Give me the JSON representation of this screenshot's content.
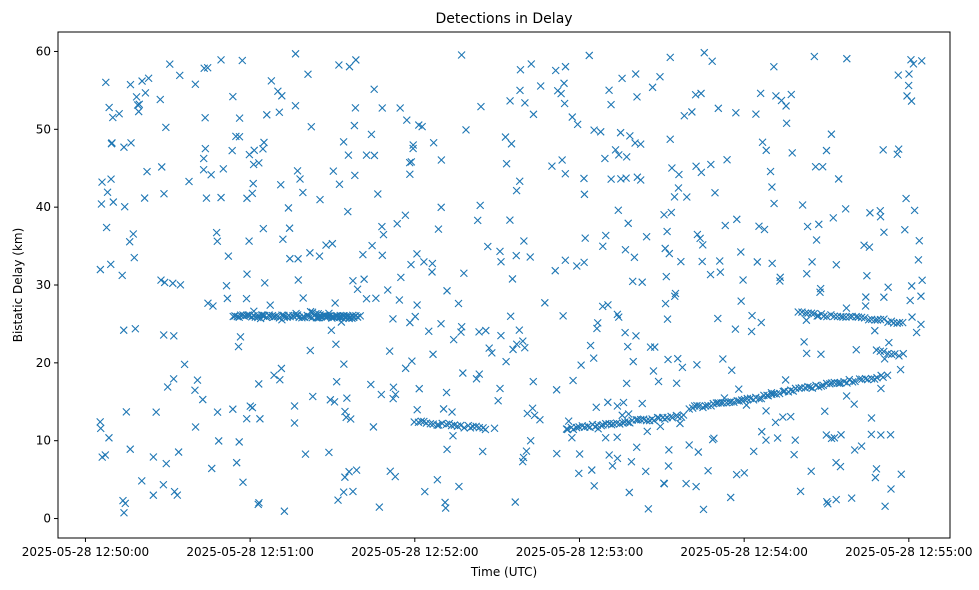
{
  "chart_data": {
    "type": "scatter",
    "title": "Detections in Delay",
    "xlabel": "Time (UTC)",
    "ylabel": "Bistatic Delay (km)",
    "xlim": [
      "2025-05-28 12:49:50",
      "2025-05-28 12:55:15"
    ],
    "ylim": [
      -2.5,
      62.5
    ],
    "xticks": [
      "2025-05-28 12:50:00",
      "2025-05-28 12:51:00",
      "2025-05-28 12:52:00",
      "2025-05-28 12:53:00",
      "2025-05-28 12:54:00",
      "2025-05-28 12:55:00"
    ],
    "yticks": [
      0,
      10,
      20,
      30,
      40,
      50,
      60
    ],
    "marker": "x",
    "color": "#1f77b4",
    "grid": false,
    "legend": "none",
    "tracks": [
      {
        "from": [
          "2025-05-28 12:50:54",
          26.0
        ],
        "to": [
          "2025-05-28 12:51:40",
          25.9
        ],
        "count": 70
      },
      {
        "from": [
          "2025-05-28 12:51:22",
          26.4
        ],
        "to": [
          "2025-05-28 12:51:38",
          25.8
        ],
        "count": 18
      },
      {
        "from": [
          "2025-05-28 12:52:00",
          12.4
        ],
        "to": [
          "2025-05-28 12:52:26",
          11.6
        ],
        "count": 24
      },
      {
        "from": [
          "2025-05-28 12:52:55",
          11.5
        ],
        "to": [
          "2025-05-28 12:53:38",
          13.2
        ],
        "count": 45
      },
      {
        "from": [
          "2025-05-28 12:53:40",
          14.2
        ],
        "to": [
          "2025-05-28 12:54:10",
          15.8
        ],
        "count": 32
      },
      {
        "from": [
          "2025-05-28 12:54:10",
          16.0
        ],
        "to": [
          "2025-05-28 12:54:35",
          17.5
        ],
        "count": 26
      },
      {
        "from": [
          "2025-05-28 12:54:35",
          17.5
        ],
        "to": [
          "2025-05-28 12:54:52",
          18.3
        ],
        "count": 16
      },
      {
        "from": [
          "2025-05-28 12:54:20",
          26.4
        ],
        "to": [
          "2025-05-28 12:54:58",
          25.2
        ],
        "count": 34
      },
      {
        "from": [
          "2025-05-28 12:54:48",
          21.5
        ],
        "to": [
          "2025-05-28 12:54:58",
          21.0
        ],
        "count": 8
      }
    ],
    "scattered_points": {
      "count": 620,
      "x_range": [
        "2025-05-28 12:50:05",
        "2025-05-28 12:55:05"
      ],
      "y_range": [
        0.5,
        60
      ]
    }
  }
}
